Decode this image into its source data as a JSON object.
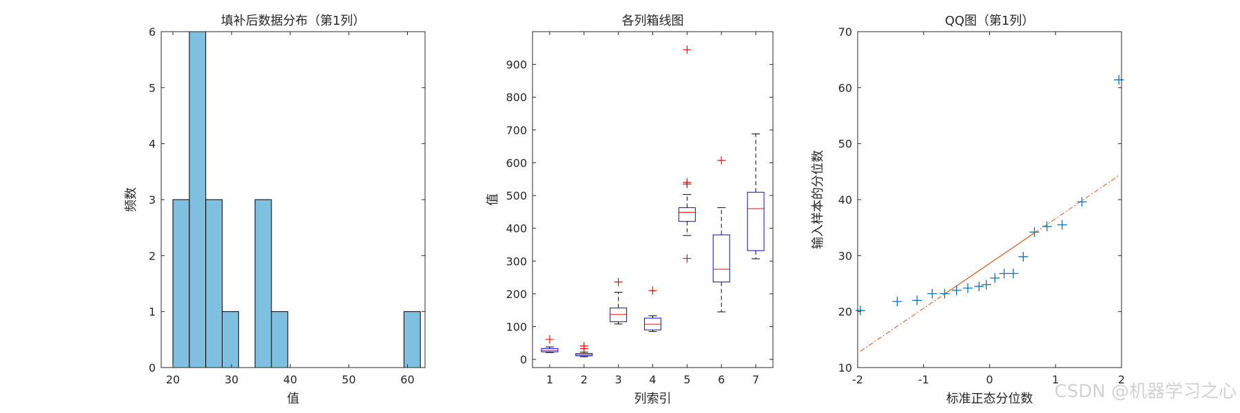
{
  "chart_data": [
    {
      "type": "bar",
      "title": "填补后数据分布（第1列）",
      "xlabel": "值",
      "ylabel": "频数",
      "xlim": [
        18,
        63
      ],
      "ylim": [
        0,
        6
      ],
      "xticks": [
        20,
        30,
        40,
        50,
        60
      ],
      "yticks": [
        0,
        1,
        2,
        3,
        4,
        5,
        6
      ],
      "bar_color": "#7fbfdf",
      "edge_color": "#000000",
      "bins": [
        {
          "x0": 20,
          "x1": 22.8,
          "count": 3
        },
        {
          "x0": 22.8,
          "x1": 25.6,
          "count": 6
        },
        {
          "x0": 25.6,
          "x1": 28.4,
          "count": 3
        },
        {
          "x0": 28.4,
          "x1": 31.2,
          "count": 1
        },
        {
          "x0": 31.2,
          "x1": 34.0,
          "count": 0
        },
        {
          "x0": 34.0,
          "x1": 36.8,
          "count": 3
        },
        {
          "x0": 36.8,
          "x1": 39.6,
          "count": 1
        },
        {
          "x0": 59.4,
          "x1": 62.2,
          "count": 1
        }
      ]
    },
    {
      "type": "box",
      "title": "各列箱线图",
      "xlabel": "列索引",
      "ylabel": "值",
      "xlim": [
        0.5,
        7.5
      ],
      "ylim": [
        -25,
        1000
      ],
      "xticks": [
        1,
        2,
        3,
        4,
        5,
        6,
        7
      ],
      "yticks": [
        0,
        100,
        200,
        300,
        400,
        500,
        600,
        700,
        800,
        900
      ],
      "box_color": "#0000ff",
      "median_color": "#ff0000",
      "whisker_color": "#000000",
      "outlier_color": "#ff0000",
      "boxes": [
        {
          "x": 1,
          "min": 21,
          "q1": 23,
          "median": 27,
          "q3": 33,
          "max": 38,
          "outliers": [
            61
          ]
        },
        {
          "x": 2,
          "min": 8,
          "q1": 11,
          "median": 14,
          "q3": 18,
          "max": 22,
          "outliers": [
            33,
            41
          ]
        },
        {
          "x": 3,
          "min": 108,
          "q1": 115,
          "median": 137,
          "q3": 157,
          "max": 205,
          "outliers": [
            236
          ]
        },
        {
          "x": 4,
          "min": 85,
          "q1": 90,
          "median": 107,
          "q3": 126,
          "max": 133,
          "outliers": [
            210
          ]
        },
        {
          "x": 5,
          "min": 378,
          "q1": 421,
          "median": 449,
          "q3": 463,
          "max": 503,
          "outliers": [
            308,
            535,
            540,
            945
          ]
        },
        {
          "x": 6,
          "min": 145,
          "q1": 236,
          "median": 275,
          "q3": 380,
          "max": 463,
          "outliers": [
            607
          ]
        },
        {
          "x": 7,
          "min": 307,
          "q1": 332,
          "median": 460,
          "q3": 510,
          "max": 688,
          "outliers": []
        }
      ]
    },
    {
      "type": "scatter",
      "title": "QQ图（第1列）",
      "xlabel": "标准正态分位数",
      "ylabel": "输入样本的分位数",
      "xlim": [
        -2,
        2
      ],
      "ylim": [
        10,
        70
      ],
      "xticks": [
        -2,
        -1,
        0,
        1,
        2
      ],
      "yticks": [
        10,
        20,
        30,
        40,
        50,
        60,
        70
      ],
      "marker_color": "#0072bd",
      "line_color": "#d95319",
      "points": [
        {
          "x": -1.96,
          "y": 20.2
        },
        {
          "x": -1.4,
          "y": 21.8
        },
        {
          "x": -1.1,
          "y": 22.0
        },
        {
          "x": -0.87,
          "y": 23.2
        },
        {
          "x": -0.68,
          "y": 23.2
        },
        {
          "x": -0.5,
          "y": 23.8
        },
        {
          "x": -0.33,
          "y": 24.2
        },
        {
          "x": -0.16,
          "y": 24.5
        },
        {
          "x": -0.05,
          "y": 24.8
        },
        {
          "x": 0.08,
          "y": 26.0
        },
        {
          "x": 0.22,
          "y": 26.8
        },
        {
          "x": 0.36,
          "y": 26.8
        },
        {
          "x": 0.51,
          "y": 29.8
        },
        {
          "x": 0.68,
          "y": 34.2
        },
        {
          "x": 0.87,
          "y": 35.2
        },
        {
          "x": 1.1,
          "y": 35.5
        },
        {
          "x": 1.4,
          "y": 39.6
        },
        {
          "x": 1.96,
          "y": 61.4
        }
      ],
      "ref_line": {
        "x0": -1.96,
        "y0": 12.9,
        "x1": 1.96,
        "y1": 44.3
      },
      "ref_solid_range": [
        -0.68,
        0.68
      ]
    }
  ],
  "watermark": "CSDN @机器学习之心"
}
